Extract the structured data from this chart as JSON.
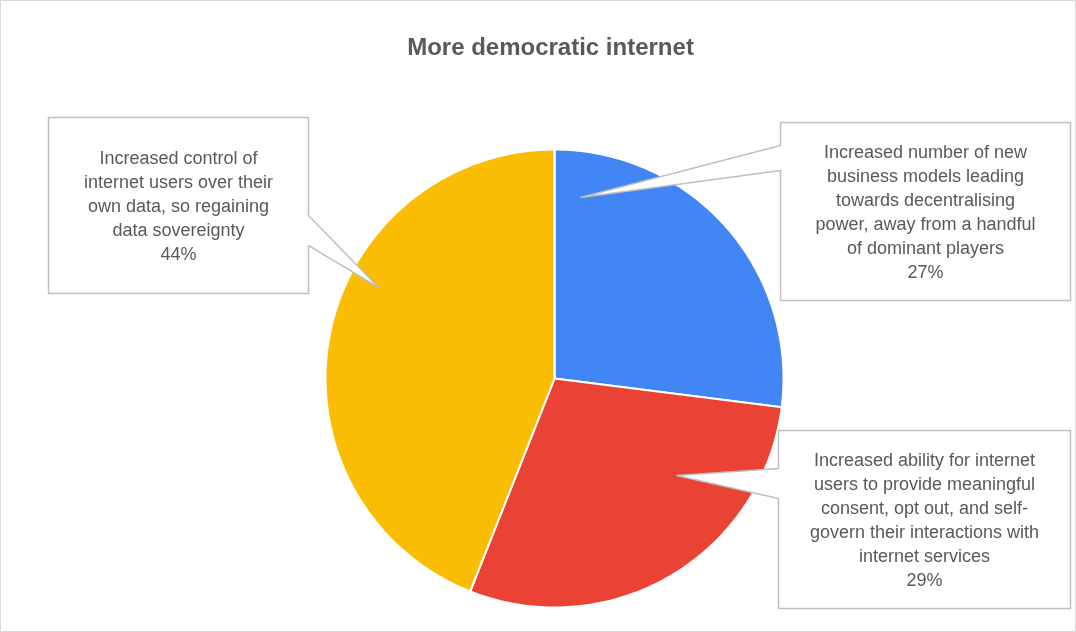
{
  "chart_data": {
    "type": "pie",
    "title": "More democratic internet",
    "categories": [
      "Increased number of new business models leading towards decentralising power, away from a handful of dominant players",
      "Increased ability for internet users to provide meaningful consent, opt out, and self-govern their interactions with internet services",
      "Increased control of internet users over their own data, so regaining data sovereignty"
    ],
    "values": [
      27,
      29,
      44
    ],
    "colors": [
      "#4285f4",
      "#ea4335",
      "#fbbc04"
    ],
    "value_labels": [
      "27%",
      "29%",
      "44%"
    ]
  }
}
